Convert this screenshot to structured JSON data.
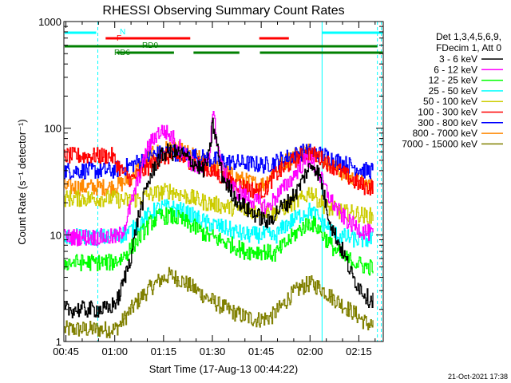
{
  "chart_data": {
    "type": "line",
    "title": "RHESSI Observing Summary Count Rates",
    "xlabel": "Start Time (17-Aug-13 00:44:22)",
    "ylabel": "Count Rate (s⁻¹ detector⁻¹)",
    "y_scale": "log",
    "ylim": [
      1,
      1000
    ],
    "xlim_minutes": [
      44.37,
      142.5
    ],
    "x_ticks": [
      {
        "label": "00:45",
        "minutes": 45
      },
      {
        "label": "01:00",
        "minutes": 60
      },
      {
        "label": "01:15",
        "minutes": 75
      },
      {
        "label": "01:30",
        "minutes": 90
      },
      {
        "label": "01:45",
        "minutes": 105
      },
      {
        "label": "02:00",
        "minutes": 120
      },
      {
        "label": "02:15",
        "minutes": 135
      }
    ],
    "y_ticks": [
      {
        "label": "1",
        "value": 1
      },
      {
        "label": "10",
        "value": 10
      },
      {
        "label": "100",
        "value": 100
      },
      {
        "label": "1000",
        "value": 1000
      }
    ],
    "legend": {
      "placement": "right",
      "header": [
        "Det 1,3,4,5,6,9,",
        "FDecim 1, Att 0"
      ]
    },
    "series": [
      {
        "name": "3 - 6 keV",
        "color": "#000000",
        "points": [
          [
            44.5,
            2
          ],
          [
            58,
            2
          ],
          [
            61,
            2.5
          ],
          [
            63,
            4
          ],
          [
            65,
            6.5
          ],
          [
            67,
            14
          ],
          [
            70,
            30
          ],
          [
            73,
            50
          ],
          [
            76,
            60
          ],
          [
            80,
            58
          ],
          [
            84,
            48
          ],
          [
            87,
            40
          ],
          [
            89,
            55
          ],
          [
            90,
            110
          ],
          [
            91,
            80
          ],
          [
            93,
            35
          ],
          [
            97,
            22
          ],
          [
            101,
            17
          ],
          [
            104,
            15
          ],
          [
            107,
            13
          ],
          [
            110,
            17
          ],
          [
            113,
            20
          ],
          [
            116,
            26
          ],
          [
            119,
            40
          ],
          [
            121,
            46
          ],
          [
            123,
            35
          ],
          [
            125,
            18
          ],
          [
            127,
            11
          ],
          [
            130,
            7
          ],
          [
            133,
            4
          ],
          [
            136,
            3
          ],
          [
            138,
            2.5
          ],
          [
            139.5,
            2.5
          ]
        ]
      },
      {
        "name": "6 - 12 keV",
        "color": "#ff00ff",
        "points": [
          [
            44.5,
            9.5
          ],
          [
            58,
            9.5
          ],
          [
            61,
            9.5
          ],
          [
            63,
            12
          ],
          [
            66,
            25
          ],
          [
            70,
            65
          ],
          [
            73,
            90
          ],
          [
            75,
            95
          ],
          [
            78,
            80
          ],
          [
            81,
            60
          ],
          [
            84,
            45
          ],
          [
            87,
            40
          ],
          [
            89,
            55
          ],
          [
            90,
            150
          ],
          [
            91,
            90
          ],
          [
            93,
            40
          ],
          [
            97,
            26
          ],
          [
            101,
            22
          ],
          [
            104,
            20
          ],
          [
            107,
            18
          ],
          [
            110,
            24
          ],
          [
            113,
            30
          ],
          [
            116,
            40
          ],
          [
            119,
            52
          ],
          [
            121,
            46
          ],
          [
            123,
            35
          ],
          [
            126,
            22
          ],
          [
            129,
            16
          ],
          [
            132,
            13
          ],
          [
            136,
            11
          ],
          [
            139.5,
            10
          ]
        ]
      },
      {
        "name": "12 - 25 keV",
        "color": "#00ff00",
        "points": [
          [
            44.5,
            5.5
          ],
          [
            59,
            5.5
          ],
          [
            62,
            6
          ],
          [
            65,
            7.5
          ],
          [
            68,
            10
          ],
          [
            71,
            13
          ],
          [
            74,
            15
          ],
          [
            77,
            15
          ],
          [
            80,
            14
          ],
          [
            84,
            12
          ],
          [
            88,
            10
          ],
          [
            92,
            9
          ],
          [
            96,
            8
          ],
          [
            100,
            7
          ],
          [
            103,
            7
          ],
          [
            106,
            7
          ],
          [
            109,
            6.5
          ],
          [
            112,
            8
          ],
          [
            115,
            10
          ],
          [
            118,
            12
          ],
          [
            120,
            13
          ],
          [
            122,
            12
          ],
          [
            125,
            9
          ],
          [
            128,
            7
          ],
          [
            131,
            6
          ],
          [
            134,
            5.5
          ],
          [
            137,
            5
          ],
          [
            139.5,
            5
          ]
        ]
      },
      {
        "name": "25 - 50 keV",
        "color": "#00ffff",
        "points": [
          [
            44.5,
            9.5
          ],
          [
            59,
            9.5
          ],
          [
            62,
            10
          ],
          [
            65,
            11
          ],
          [
            68,
            13
          ],
          [
            71,
            16
          ],
          [
            74,
            18
          ],
          [
            77,
            18
          ],
          [
            80,
            17
          ],
          [
            84,
            15
          ],
          [
            88,
            13
          ],
          [
            92,
            12
          ],
          [
            96,
            11
          ],
          [
            100,
            10
          ],
          [
            103,
            10
          ],
          [
            106,
            10
          ],
          [
            109,
            9.5
          ],
          [
            112,
            12
          ],
          [
            115,
            14
          ],
          [
            118,
            16
          ],
          [
            120,
            17
          ],
          [
            122,
            15
          ],
          [
            125,
            12
          ],
          [
            128,
            10
          ],
          [
            131,
            9.5
          ],
          [
            134,
            9
          ],
          [
            137,
            9
          ],
          [
            139.5,
            9
          ]
        ]
      },
      {
        "name": "50 - 100 keV",
        "color": "#cccc00",
        "points": [
          [
            44.5,
            22
          ],
          [
            59,
            22
          ],
          [
            62,
            21
          ],
          [
            65,
            21
          ],
          [
            68,
            22
          ],
          [
            71,
            24
          ],
          [
            74,
            25
          ],
          [
            77,
            26
          ],
          [
            80,
            24
          ],
          [
            84,
            22
          ],
          [
            88,
            20
          ],
          [
            92,
            19
          ],
          [
            96,
            18
          ],
          [
            100,
            17
          ],
          [
            103,
            17
          ],
          [
            106,
            17
          ],
          [
            109,
            16
          ],
          [
            112,
            18
          ],
          [
            115,
            20
          ],
          [
            118,
            22
          ],
          [
            120,
            26
          ],
          [
            122,
            22
          ],
          [
            125,
            18
          ],
          [
            128,
            17
          ],
          [
            131,
            16
          ],
          [
            134,
            16
          ],
          [
            137,
            15
          ],
          [
            139.5,
            15
          ]
        ]
      },
      {
        "name": "100 - 300 keV",
        "color": "#ff0000",
        "points": [
          [
            44.5,
            55
          ],
          [
            59,
            55
          ],
          [
            62,
            40
          ],
          [
            65,
            33
          ],
          [
            68,
            38
          ],
          [
            71,
            45
          ],
          [
            74,
            52
          ],
          [
            77,
            55
          ],
          [
            80,
            53
          ],
          [
            84,
            48
          ],
          [
            88,
            42
          ],
          [
            92,
            36
          ],
          [
            96,
            31
          ],
          [
            100,
            28
          ],
          [
            103,
            26
          ],
          [
            106,
            26
          ],
          [
            109,
            36
          ],
          [
            112,
            42
          ],
          [
            115,
            50
          ],
          [
            118,
            56
          ],
          [
            120,
            58
          ],
          [
            122,
            55
          ],
          [
            125,
            48
          ],
          [
            128,
            42
          ],
          [
            131,
            36
          ],
          [
            134,
            31
          ],
          [
            137,
            28
          ],
          [
            139.5,
            28
          ]
        ]
      },
      {
        "name": "300 - 800 keV",
        "color": "#0000ff",
        "points": [
          [
            44.5,
            40
          ],
          [
            59,
            40
          ],
          [
            62,
            42
          ],
          [
            65,
            45
          ],
          [
            68,
            50
          ],
          [
            71,
            55
          ],
          [
            74,
            58
          ],
          [
            77,
            60
          ],
          [
            80,
            58
          ],
          [
            84,
            55
          ],
          [
            88,
            52
          ],
          [
            92,
            50
          ],
          [
            96,
            48
          ],
          [
            100,
            47
          ],
          [
            103,
            46
          ],
          [
            106,
            45
          ],
          [
            109,
            48
          ],
          [
            112,
            52
          ],
          [
            115,
            56
          ],
          [
            118,
            60
          ],
          [
            120,
            60
          ],
          [
            122,
            58
          ],
          [
            125,
            55
          ],
          [
            128,
            50
          ],
          [
            131,
            46
          ],
          [
            134,
            43
          ],
          [
            137,
            40
          ],
          [
            139.5,
            40
          ]
        ]
      },
      {
        "name": "800 - 7000 keV",
        "color": "#ff8800",
        "points": [
          [
            44.5,
            28
          ],
          [
            59,
            28
          ],
          [
            62,
            30
          ],
          [
            65,
            35
          ],
          [
            68,
            45
          ],
          [
            71,
            55
          ],
          [
            74,
            62
          ],
          [
            77,
            65
          ],
          [
            80,
            62
          ],
          [
            84,
            55
          ],
          [
            88,
            48
          ],
          [
            92,
            42
          ],
          [
            96,
            36
          ],
          [
            100,
            32
          ],
          [
            103,
            30
          ],
          [
            106,
            30
          ],
          [
            109,
            40
          ],
          [
            112,
            48
          ],
          [
            115,
            55
          ],
          [
            118,
            60
          ],
          [
            120,
            62
          ],
          [
            122,
            58
          ],
          [
            125,
            50
          ],
          [
            128,
            42
          ],
          [
            131,
            36
          ],
          [
            134,
            32
          ],
          [
            137,
            30
          ],
          [
            139.5,
            28
          ]
        ]
      },
      {
        "name": "7000 - 15000 keV",
        "color": "#808000",
        "points": [
          [
            44.5,
            1.3
          ],
          [
            60,
            1.3
          ],
          [
            62,
            1.5
          ],
          [
            65,
            2
          ],
          [
            68,
            2.6
          ],
          [
            71,
            3.2
          ],
          [
            74,
            3.8
          ],
          [
            77,
            4.2
          ],
          [
            80,
            3.8
          ],
          [
            84,
            3.2
          ],
          [
            88,
            2.6
          ],
          [
            92,
            2.2
          ],
          [
            96,
            1.9
          ],
          [
            100,
            1.7
          ],
          [
            104,
            1.6
          ],
          [
            108,
            1.7
          ],
          [
            111,
            2.1
          ],
          [
            114,
            2.7
          ],
          [
            117,
            3.2
          ],
          [
            120,
            3.5
          ],
          [
            123,
            3.2
          ],
          [
            126,
            2.7
          ],
          [
            130,
            2.2
          ],
          [
            134,
            1.8
          ],
          [
            137,
            1.5
          ],
          [
            139.5,
            1.4
          ]
        ]
      }
    ],
    "state_bars": [
      {
        "label": "N",
        "color": "#00ffff",
        "row": 0,
        "segments": [
          [
            44.6,
            54.3
          ],
          [
            123.7,
            142.3
          ]
        ]
      },
      {
        "label": "F",
        "color": "#ff0000",
        "row": 1,
        "segments": [
          [
            57.2,
            83.2
          ],
          [
            104.4,
            113.5
          ]
        ]
      },
      {
        "label": "RD0",
        "color": "#008000",
        "row": 2,
        "segments": [
          [
            44.6,
            140.7
          ]
        ]
      },
      {
        "label": "RD6",
        "color": "#008000",
        "row": 3,
        "segments": [
          [
            60.5,
            78.2
          ],
          [
            84.2,
            98.3
          ],
          [
            104.6,
            142.3
          ]
        ]
      }
    ],
    "vertical_markers": [
      {
        "style": "dashed",
        "minutes": 54.8
      },
      {
        "style": "solid",
        "minutes": 123.7
      },
      {
        "style": "dashed",
        "minutes": 140.7
      },
      {
        "style": "dashed",
        "minutes": 141.9
      }
    ],
    "footer": "21-Oct-2021 17:38"
  }
}
